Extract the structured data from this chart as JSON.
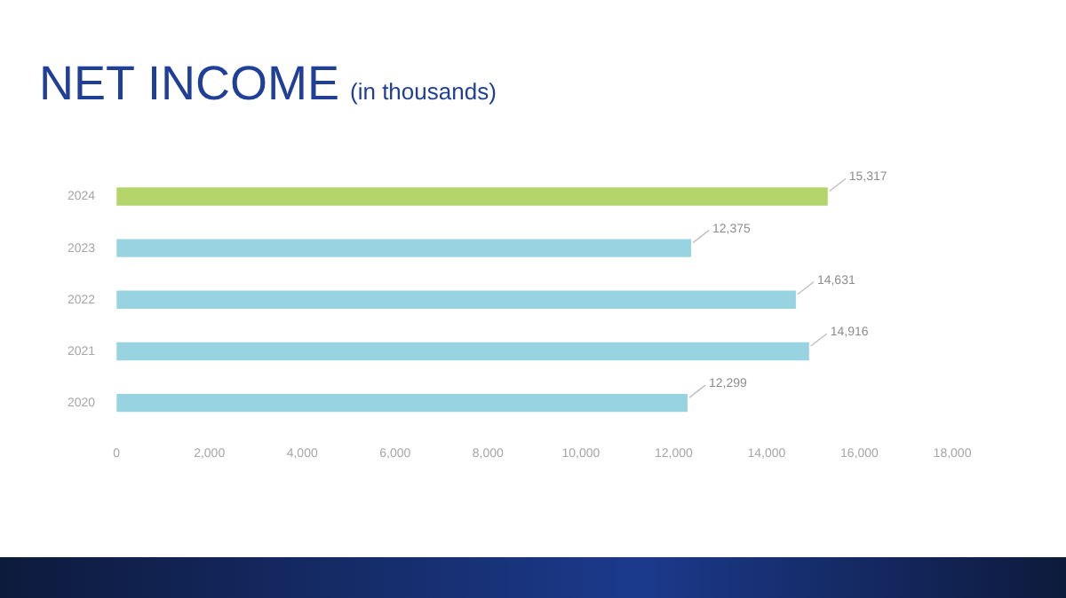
{
  "chart_data": {
    "type": "bar",
    "orientation": "horizontal",
    "title": "NET INCOME",
    "subtitle": "(in thousands)",
    "categories": [
      "2024",
      "2023",
      "2022",
      "2021",
      "2020"
    ],
    "values": [
      15317,
      12375,
      14631,
      14916,
      12299
    ],
    "colors": [
      "#b3d56a",
      "#97d3e1",
      "#97d3e1",
      "#97d3e1",
      "#97d3e1"
    ],
    "value_labels": [
      "15,317",
      "12,375",
      "14,631",
      "14,916",
      "12,299"
    ],
    "xlim": [
      0,
      18000
    ],
    "xticks": [
      {
        "value": 0,
        "label": "0"
      },
      {
        "value": 2000,
        "label": "2,000"
      },
      {
        "value": 4000,
        "label": "4,000"
      },
      {
        "value": 6000,
        "label": "6,000"
      },
      {
        "value": 8000,
        "label": "8,000"
      },
      {
        "value": 10000,
        "label": "10,000"
      },
      {
        "value": 12000,
        "label": "12,000"
      },
      {
        "value": 14000,
        "label": "14,000"
      },
      {
        "value": 16000,
        "label": "16,000"
      },
      {
        "value": 18000,
        "label": "18,000"
      }
    ],
    "grid": false,
    "legend": false
  }
}
